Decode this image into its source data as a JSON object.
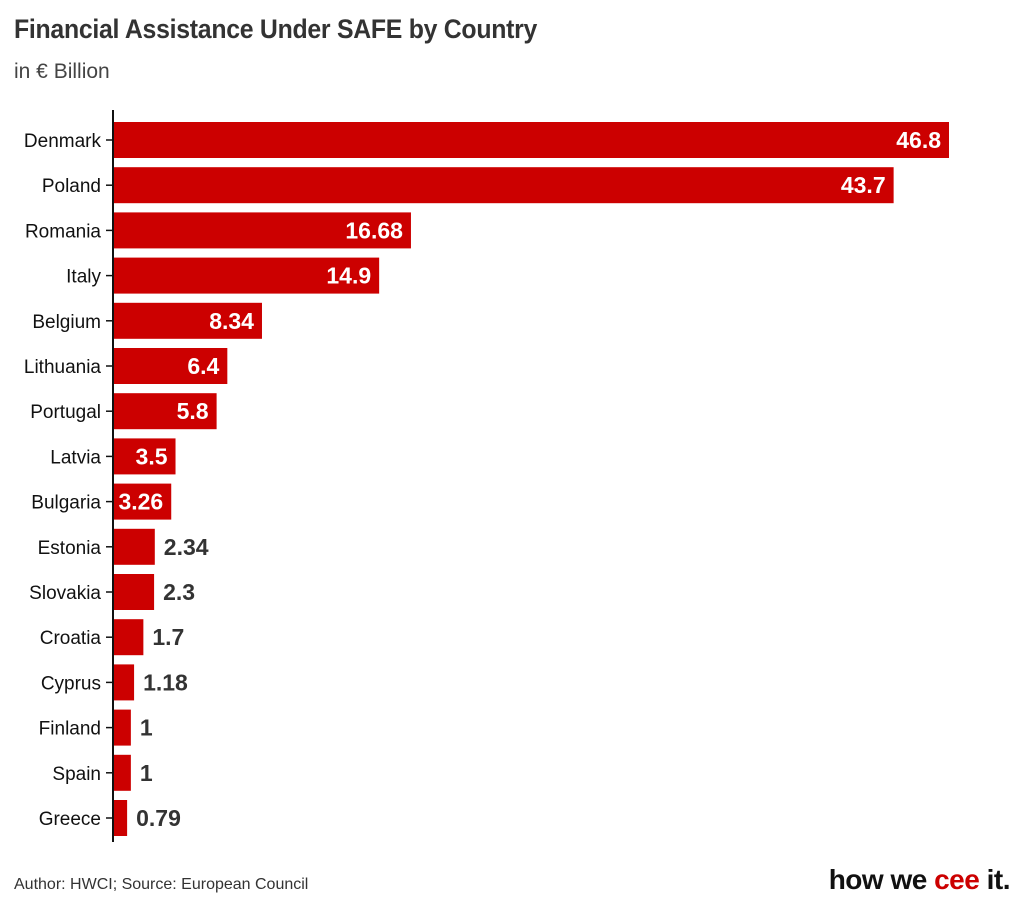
{
  "title": "Financial Assistance Under SAFE by Country",
  "subtitle": "in € Billion",
  "footer": "Author: HWCI; Source: European Council",
  "logo": {
    "part1": "how we ",
    "part2": "cee",
    "part3": " it."
  },
  "colors": {
    "bar": "#cc0000",
    "accent": "#cc0000",
    "text": "#333333"
  },
  "chart_data": {
    "type": "bar",
    "orientation": "horizontal",
    "categories": [
      "Denmark",
      "Poland",
      "Romania",
      "Italy",
      "Belgium",
      "Lithuania",
      "Portugal",
      "Latvia",
      "Bulgaria",
      "Estonia",
      "Slovakia",
      "Croatia",
      "Cyprus",
      "Finland",
      "Spain",
      "Greece"
    ],
    "values": [
      46.8,
      43.7,
      16.68,
      14.9,
      8.34,
      6.4,
      5.8,
      3.5,
      3.26,
      2.34,
      2.3,
      1.7,
      1.18,
      1,
      1,
      0.79
    ],
    "value_labels": [
      "46.8",
      "43.7",
      "16.68",
      "14.9",
      "8.34",
      "6.4",
      "5.8",
      "3.5",
      "3.26",
      "2.34",
      "2.3",
      "1.7",
      "1.18",
      "1",
      "1",
      "0.79"
    ],
    "xlim": [
      0,
      46.8
    ],
    "grid": false,
    "legend": "none"
  }
}
